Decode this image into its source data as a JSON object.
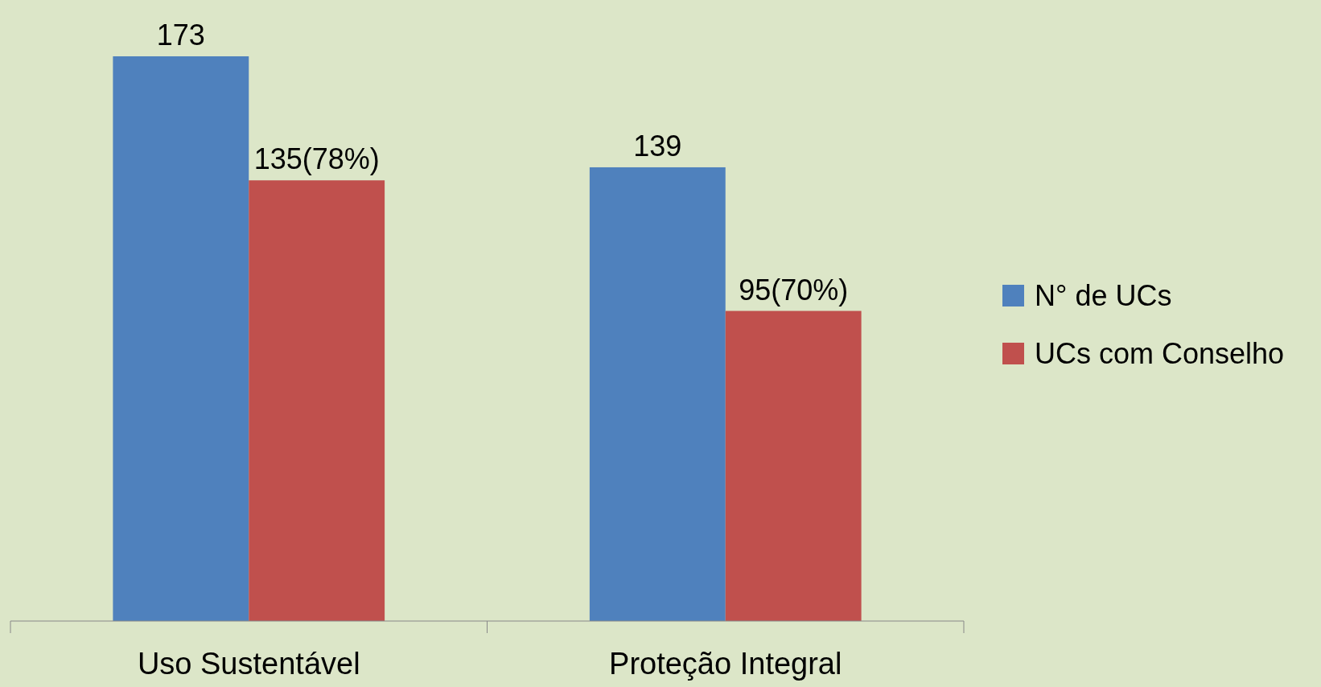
{
  "chart_data": {
    "type": "bar",
    "categories": [
      "Uso Sustentável",
      "Proteção Integral"
    ],
    "series": [
      {
        "name": "N° de UCs",
        "color": "#4f81bd",
        "values": [
          173,
          139
        ],
        "value_labels": [
          "173",
          "139"
        ]
      },
      {
        "name": "UCs com Conselho",
        "color": "#c0504d",
        "values": [
          135,
          95
        ],
        "value_labels": [
          "135(78%)",
          "95(70%)"
        ]
      }
    ],
    "legend": "right"
  }
}
